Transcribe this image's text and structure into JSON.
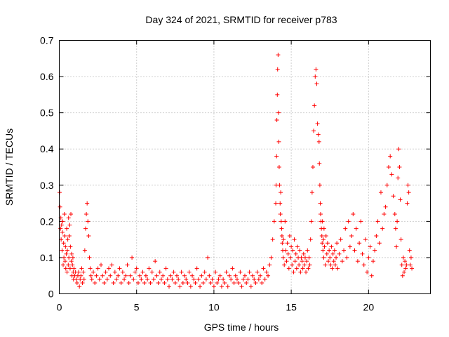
{
  "chart_data": {
    "type": "scatter",
    "title": "Day 324 of 2021, SRMTID for receiver p783",
    "xlabel": "GPS time / hours",
    "ylabel": "SRMTID / TECUs",
    "xlim": [
      0,
      24
    ],
    "ylim": [
      0,
      0.7
    ],
    "xticks": [
      0,
      5,
      10,
      15,
      20
    ],
    "xtick_labels": [
      "0",
      "5",
      "10",
      "15",
      "20"
    ],
    "yticks": [
      0,
      0.1,
      0.2,
      0.3,
      0.4,
      0.5,
      0.6,
      0.7
    ],
    "ytick_labels": [
      "0",
      "0.1",
      "0.2",
      "0.3",
      "0.4",
      "0.5",
      "0.6",
      "0.7"
    ],
    "grid": true,
    "marker": "+",
    "series": [
      {
        "name": "SRMTID p783",
        "color": "#ff0000",
        "x": [
          0.02,
          0.05,
          0.08,
          0.1,
          0.12,
          0.15,
          0.18,
          0.2,
          0.22,
          0.25,
          0.28,
          0.3,
          0.33,
          0.35,
          0.38,
          0.4,
          0.42,
          0.45,
          0.48,
          0.5,
          0.52,
          0.55,
          0.58,
          0.6,
          0.62,
          0.65,
          0.68,
          0.7,
          0.72,
          0.75,
          0.78,
          0.8,
          0.82,
          0.85,
          0.88,
          0.9,
          0.92,
          0.95,
          1.0,
          1.05,
          1.1,
          1.15,
          1.2,
          1.25,
          1.3,
          1.35,
          1.4,
          1.45,
          1.5,
          1.55,
          1.6,
          1.65,
          1.7,
          1.75,
          1.8,
          1.85,
          1.9,
          1.95,
          2.0,
          2.05,
          2.1,
          2.2,
          2.3,
          2.4,
          2.5,
          2.6,
          2.7,
          2.8,
          2.9,
          3.0,
          3.1,
          3.2,
          3.3,
          3.4,
          3.5,
          3.6,
          3.7,
          3.8,
          3.9,
          4.0,
          4.1,
          4.2,
          4.3,
          4.4,
          4.5,
          4.6,
          4.7,
          4.8,
          4.9,
          5.0,
          5.1,
          5.2,
          5.3,
          5.4,
          5.5,
          5.6,
          5.7,
          5.8,
          5.9,
          6.0,
          6.1,
          6.2,
          6.3,
          6.4,
          6.5,
          6.6,
          6.7,
          6.8,
          6.9,
          7.0,
          7.1,
          7.2,
          7.3,
          7.4,
          7.5,
          7.6,
          7.7,
          7.8,
          7.9,
          8.0,
          8.1,
          8.2,
          8.3,
          8.4,
          8.5,
          8.6,
          8.7,
          8.8,
          8.9,
          9.0,
          9.1,
          9.2,
          9.3,
          9.4,
          9.5,
          9.6,
          9.7,
          9.8,
          9.9,
          10.0,
          10.1,
          10.2,
          10.3,
          10.4,
          10.5,
          10.6,
          10.7,
          10.8,
          10.9,
          11.0,
          11.1,
          11.2,
          11.3,
          11.4,
          11.5,
          11.6,
          11.7,
          11.8,
          11.9,
          12.0,
          12.1,
          12.2,
          12.3,
          12.4,
          12.5,
          12.6,
          12.7,
          12.8,
          12.9,
          13.0,
          13.1,
          13.2,
          13.3,
          13.4,
          13.5,
          13.6,
          13.7,
          13.8,
          13.9,
          14.0,
          14.02,
          14.05,
          14.07,
          14.1,
          14.12,
          14.15,
          14.18,
          14.2,
          14.22,
          14.25,
          14.28,
          14.3,
          14.32,
          14.35,
          14.38,
          14.4,
          14.42,
          14.45,
          14.48,
          14.5,
          14.55,
          14.6,
          14.65,
          14.7,
          14.75,
          14.8,
          14.85,
          14.9,
          14.95,
          15.0,
          15.05,
          15.1,
          15.15,
          15.2,
          15.25,
          15.3,
          15.35,
          15.4,
          15.45,
          15.5,
          15.55,
          15.6,
          15.65,
          15.7,
          15.75,
          15.8,
          15.85,
          15.9,
          15.95,
          16.0,
          16.05,
          16.1,
          16.15,
          16.2,
          16.25,
          16.3,
          16.35,
          16.4,
          16.45,
          16.5,
          16.55,
          16.6,
          16.65,
          16.7,
          16.75,
          16.8,
          16.82,
          16.85,
          16.88,
          16.9,
          16.92,
          16.95,
          16.98,
          17.0,
          17.02,
          17.05,
          17.08,
          17.1,
          17.12,
          17.15,
          17.2,
          17.25,
          17.3,
          17.35,
          17.4,
          17.45,
          17.5,
          17.55,
          17.6,
          17.65,
          17.7,
          17.75,
          17.8,
          17.85,
          17.9,
          17.95,
          18.0,
          18.1,
          18.2,
          18.3,
          18.4,
          18.5,
          18.6,
          18.7,
          18.8,
          18.9,
          19.0,
          19.1,
          19.2,
          19.3,
          19.4,
          19.5,
          19.6,
          19.7,
          19.8,
          19.9,
          20.0,
          20.1,
          20.2,
          20.3,
          20.4,
          20.5,
          20.6,
          20.7,
          20.8,
          20.9,
          21.0,
          21.1,
          21.2,
          21.3,
          21.4,
          21.5,
          21.6,
          21.7,
          21.75,
          21.8,
          21.85,
          21.9,
          21.95,
          22.0,
          22.05,
          22.1,
          22.15,
          22.2,
          22.25,
          22.3,
          22.35,
          22.4,
          22.45,
          22.5,
          22.55,
          22.6,
          22.65,
          22.7,
          22.75,
          22.8
        ],
        "y": [
          0.28,
          0.24,
          0.18,
          0.21,
          0.15,
          0.19,
          0.12,
          0.17,
          0.2,
          0.08,
          0.14,
          0.1,
          0.22,
          0.16,
          0.09,
          0.13,
          0.07,
          0.11,
          0.18,
          0.06,
          0.12,
          0.15,
          0.08,
          0.21,
          0.1,
          0.16,
          0.19,
          0.07,
          0.13,
          0.22,
          0.09,
          0.11,
          0.05,
          0.08,
          0.1,
          0.06,
          0.04,
          0.07,
          0.05,
          0.06,
          0.04,
          0.03,
          0.05,
          0.06,
          0.02,
          0.04,
          0.05,
          0.07,
          0.03,
          0.06,
          0.04,
          0.12,
          0.18,
          0.22,
          0.25,
          0.2,
          0.16,
          0.1,
          0.07,
          0.05,
          0.04,
          0.06,
          0.03,
          0.05,
          0.07,
          0.04,
          0.08,
          0.05,
          0.03,
          0.06,
          0.04,
          0.07,
          0.05,
          0.08,
          0.03,
          0.06,
          0.04,
          0.05,
          0.07,
          0.03,
          0.06,
          0.04,
          0.05,
          0.08,
          0.03,
          0.05,
          0.1,
          0.04,
          0.06,
          0.07,
          0.03,
          0.05,
          0.04,
          0.06,
          0.03,
          0.05,
          0.04,
          0.07,
          0.03,
          0.06,
          0.04,
          0.09,
          0.05,
          0.03,
          0.06,
          0.04,
          0.05,
          0.03,
          0.07,
          0.04,
          0.02,
          0.05,
          0.04,
          0.06,
          0.03,
          0.05,
          0.04,
          0.02,
          0.06,
          0.03,
          0.05,
          0.04,
          0.03,
          0.06,
          0.02,
          0.05,
          0.04,
          0.03,
          0.07,
          0.04,
          0.02,
          0.05,
          0.03,
          0.06,
          0.04,
          0.1,
          0.05,
          0.03,
          0.04,
          0.02,
          0.06,
          0.03,
          0.04,
          0.05,
          0.02,
          0.04,
          0.03,
          0.06,
          0.02,
          0.05,
          0.04,
          0.07,
          0.03,
          0.05,
          0.04,
          0.03,
          0.06,
          0.02,
          0.04,
          0.05,
          0.03,
          0.04,
          0.06,
          0.02,
          0.05,
          0.04,
          0.03,
          0.06,
          0.04,
          0.05,
          0.03,
          0.07,
          0.04,
          0.06,
          0.05,
          0.08,
          0.1,
          0.15,
          0.2,
          0.25,
          0.3,
          0.38,
          0.48,
          0.55,
          0.62,
          0.66,
          0.5,
          0.42,
          0.35,
          0.3,
          0.25,
          0.22,
          0.28,
          0.2,
          0.18,
          0.16,
          0.14,
          0.12,
          0.1,
          0.15,
          0.08,
          0.2,
          0.12,
          0.09,
          0.14,
          0.11,
          0.07,
          0.16,
          0.1,
          0.13,
          0.08,
          0.12,
          0.06,
          0.15,
          0.09,
          0.11,
          0.07,
          0.13,
          0.1,
          0.08,
          0.12,
          0.06,
          0.1,
          0.09,
          0.07,
          0.11,
          0.08,
          0.1,
          0.06,
          0.09,
          0.12,
          0.07,
          0.1,
          0.08,
          0.15,
          0.2,
          0.28,
          0.35,
          0.45,
          0.52,
          0.6,
          0.62,
          0.58,
          0.47,
          0.44,
          0.42,
          0.36,
          0.3,
          0.25,
          0.22,
          0.2,
          0.18,
          0.16,
          0.14,
          0.2,
          0.12,
          0.15,
          0.1,
          0.18,
          0.13,
          0.08,
          0.16,
          0.11,
          0.14,
          0.09,
          0.12,
          0.1,
          0.08,
          0.13,
          0.07,
          0.11,
          0.09,
          0.12,
          0.08,
          0.1,
          0.14,
          0.07,
          0.11,
          0.15,
          0.09,
          0.12,
          0.18,
          0.1,
          0.2,
          0.13,
          0.16,
          0.22,
          0.12,
          0.18,
          0.09,
          0.14,
          0.2,
          0.11,
          0.08,
          0.15,
          0.06,
          0.1,
          0.13,
          0.05,
          0.09,
          0.12,
          0.16,
          0.2,
          0.14,
          0.28,
          0.18,
          0.22,
          0.24,
          0.3,
          0.35,
          0.38,
          0.33,
          0.27,
          0.22,
          0.18,
          0.13,
          0.2,
          0.32,
          0.4,
          0.35,
          0.26,
          0.15,
          0.08,
          0.05,
          0.1,
          0.06,
          0.09,
          0.07,
          0.08,
          0.25,
          0.3,
          0.28,
          0.12,
          0.08,
          0.1,
          0.07
        ]
      }
    ]
  }
}
